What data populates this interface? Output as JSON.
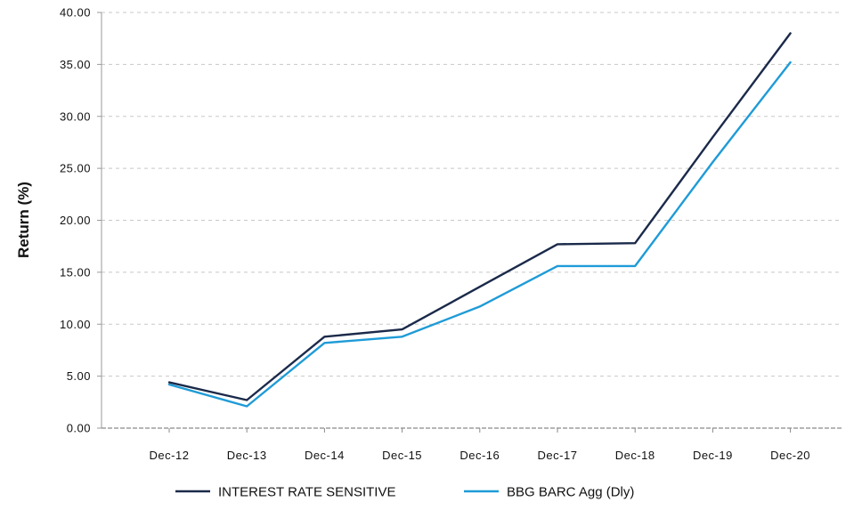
{
  "chart_data": {
    "type": "line",
    "title": "",
    "xlabel": "",
    "ylabel": "Return (%)",
    "categories": [
      "Dec-12",
      "Dec-13",
      "Dec-14",
      "Dec-15",
      "Dec-16",
      "Dec-17",
      "Dec-18",
      "Dec-19",
      "Dec-20"
    ],
    "ylim": [
      0,
      40
    ],
    "yticks": [
      "0.00",
      "5.00",
      "10.00",
      "15.00",
      "20.00",
      "25.00",
      "30.00",
      "35.00",
      "40.00"
    ],
    "grid": true,
    "legend_position": "bottom",
    "series": [
      {
        "name": "INTEREST RATE SENSITIVE",
        "color": "#1b2a4a",
        "values": [
          4.4,
          2.7,
          8.8,
          9.5,
          13.6,
          17.7,
          17.8,
          28.0,
          38.0
        ]
      },
      {
        "name": "BBG BARC Agg (Dly)",
        "color": "#1f9bd7",
        "values": [
          4.2,
          2.1,
          8.2,
          8.8,
          11.7,
          15.6,
          15.6,
          25.6,
          35.2
        ]
      }
    ]
  }
}
